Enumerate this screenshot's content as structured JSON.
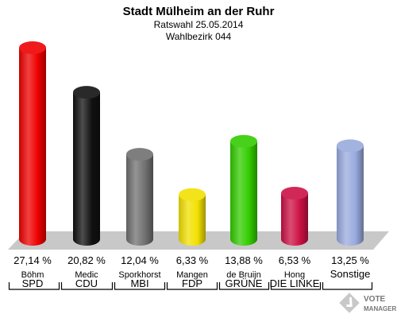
{
  "header": {
    "title": "Stadt Mülheim an der Ruhr",
    "subtitle": "Ratswahl 25.05.2014",
    "district": "Wahlbezirk 044"
  },
  "logo": {
    "line1": "VOTE",
    "line2": "MANAGER"
  },
  "chart_data": {
    "type": "bar",
    "title": "Stadt Mülheim an der Ruhr",
    "subtitle": "Ratswahl 25.05.2014 / Wahlbezirk 044",
    "unit": "%",
    "ylim": [
      0,
      30
    ],
    "categories": [
      "SPD",
      "CDU",
      "MBI",
      "FDP",
      "GRÜNE",
      "DIE LINKE",
      "Sonstige"
    ],
    "candidates": [
      "Böhm",
      "Medic",
      "Sporkhorst",
      "Mangen",
      "de Bruijn",
      "Hong",
      ""
    ],
    "values": [
      27.14,
      20.82,
      12.04,
      6.33,
      13.88,
      6.53,
      13.25
    ],
    "value_labels": [
      "27,14 %",
      "20,82 %",
      "12,04 %",
      "6,33 %",
      "13,88 %",
      "6,53 %",
      "13,25 %"
    ],
    "colors": [
      "#ee0000",
      "#111111",
      "#707070",
      "#f2e000",
      "#33cc00",
      "#cc1144",
      "#99aadd"
    ]
  }
}
